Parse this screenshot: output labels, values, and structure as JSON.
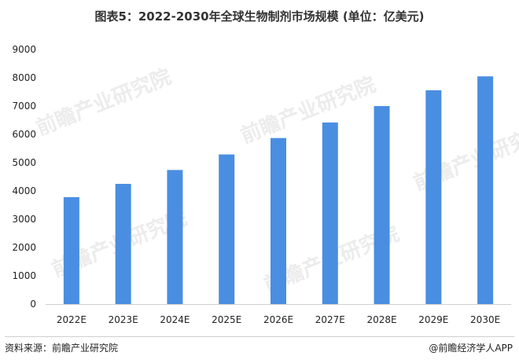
{
  "chart_data": {
    "type": "bar",
    "title": "图表5：2022-2030年全球生物制剂市场规模 (单位：亿美元)",
    "categories": [
      "2022E",
      "2023E",
      "2024E",
      "2025E",
      "2026E",
      "2027E",
      "2028E",
      "2029E",
      "2030E"
    ],
    "values": [
      3780,
      4250,
      4740,
      5290,
      5870,
      6420,
      7000,
      7560,
      8050
    ],
    "xlabel": "",
    "ylabel": "",
    "ylim": [
      0,
      9000
    ],
    "yticks": [
      0,
      1000,
      2000,
      3000,
      4000,
      5000,
      6000,
      7000,
      8000,
      9000
    ],
    "grid": false,
    "bar_color": "#4a8ee2"
  },
  "watermark": "前瞻产业研究院",
  "footer": {
    "source": "资料来源：前瞻产业研究院",
    "brand": "@前瞻经济学人APP"
  }
}
